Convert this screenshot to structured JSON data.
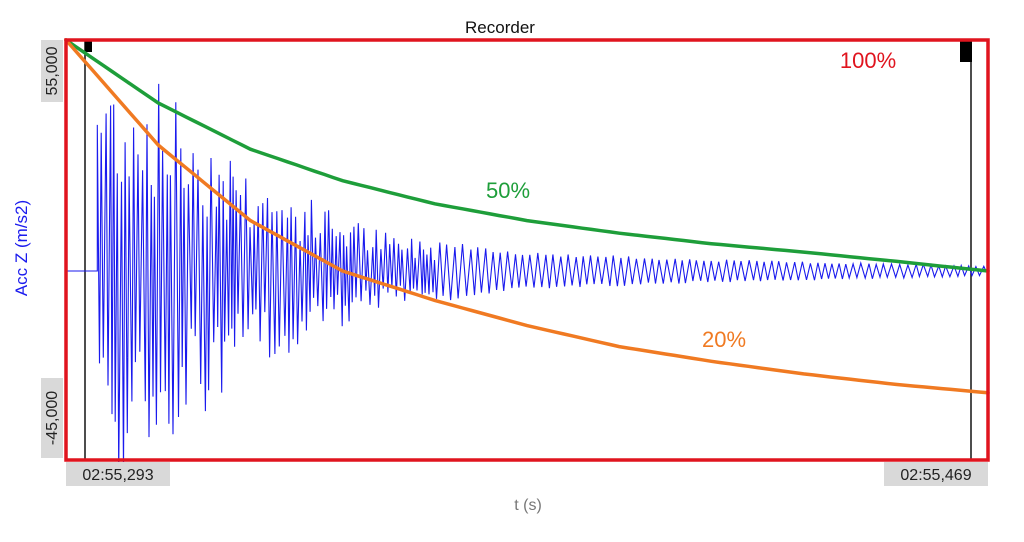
{
  "window": {
    "title": "Recorder"
  },
  "colors": {
    "frame": "#e0141e",
    "signal": "#1a1aee",
    "curve_50": "#1e9e3a",
    "curve_20": "#f07a22",
    "cursor": "#222222",
    "axis_text": "#333333",
    "ylabel": "#1a1aee",
    "tick_box": "#d9d9d9"
  },
  "chart_data": {
    "type": "line",
    "title": "Recorder",
    "xlabel": "t (s)",
    "ylabel": "Acc Z (m/s2)",
    "x_range_labels": [
      "02:55,293",
      "02:55,469"
    ],
    "y_range_labels": [
      "55,000",
      "-45,000"
    ],
    "ylim": [
      -45000,
      55000
    ],
    "grid": false,
    "legend": "none",
    "annotations": [
      {
        "id": "pct100",
        "text": "100%",
        "color": "#e0141e"
      },
      {
        "id": "pct50",
        "text": "50%",
        "color": "#1e9e3a"
      },
      {
        "id": "pct20",
        "text": "20%",
        "color": "#f07a22"
      }
    ],
    "series": [
      {
        "kind": "decaying-oscillation",
        "color": "#1a1aee",
        "baseline": 0,
        "onset_fraction": 0.034,
        "peak_amplitude": 52000,
        "envelope": [
          [
            0.034,
            52000
          ],
          [
            0.1,
            46000
          ],
          [
            0.22,
            22000
          ],
          [
            0.35,
            9000
          ],
          [
            0.5,
            4500
          ],
          [
            0.7,
            2800
          ],
          [
            1.0,
            1200
          ]
        ]
      },
      {
        "kind": "decay-curve",
        "label_ref": "pct50",
        "color": "#1e9e3a",
        "points": [
          [
            0,
            55000
          ],
          [
            0.1,
            40000
          ],
          [
            0.2,
            29000
          ],
          [
            0.3,
            21500
          ],
          [
            0.4,
            16000
          ],
          [
            0.5,
            12000
          ],
          [
            0.6,
            9000
          ],
          [
            0.7,
            6500
          ],
          [
            0.8,
            4500
          ],
          [
            0.9,
            2300
          ],
          [
            1.0,
            0
          ]
        ]
      },
      {
        "kind": "decay-curve",
        "label_ref": "pct20",
        "color": "#f07a22",
        "points": [
          [
            0,
            55000
          ],
          [
            0.1,
            30000
          ],
          [
            0.2,
            12000
          ],
          [
            0.3,
            0
          ],
          [
            0.4,
            -7000
          ],
          [
            0.5,
            -13000
          ],
          [
            0.6,
            -18000
          ],
          [
            0.7,
            -21500
          ],
          [
            0.8,
            -24500
          ],
          [
            0.9,
            -27000
          ],
          [
            1.0,
            -29000
          ]
        ]
      }
    ]
  }
}
